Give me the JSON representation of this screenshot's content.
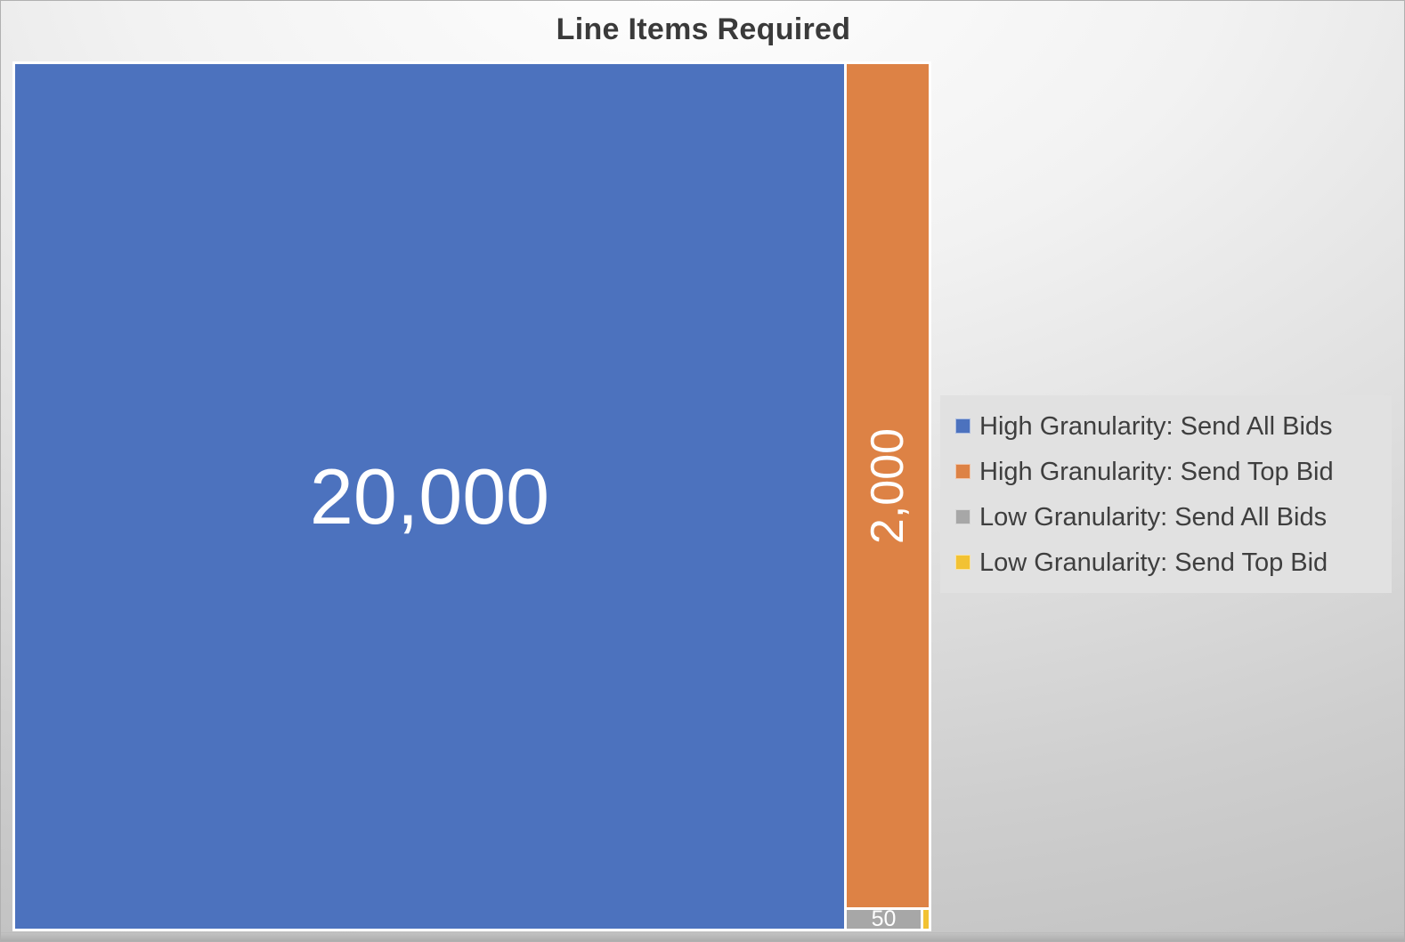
{
  "title": "Line Items Required",
  "colors": {
    "series_blue": "#4C72BE",
    "series_orange": "#DD8245",
    "series_gray": "#A7A7A7",
    "series_yellow": "#F2C233",
    "value_label_text": "#FFFFFF",
    "title_text": "#3A3A3A",
    "legend_text": "#3E3E3E",
    "legend_background": "#E1E1E1",
    "cell_divider": "#FFFFFF"
  },
  "chart_data": {
    "type": "treemap",
    "title": "Line Items Required",
    "legend_position": "right",
    "segments": [
      {
        "name": "High Granularity: Send All Bids",
        "value": 20000,
        "label": "20,000",
        "color": "#4C72BE"
      },
      {
        "name": "High Granularity: Send Top Bid",
        "value": 2000,
        "label": "2,000",
        "color": "#DD8245"
      },
      {
        "name": "Low Granularity: Send All Bids",
        "value": 50,
        "label": "50",
        "color": "#A7A7A7"
      },
      {
        "name": "Low Granularity: Send Top Bid",
        "value": null,
        "label": "",
        "color": "#F2C233"
      }
    ]
  }
}
